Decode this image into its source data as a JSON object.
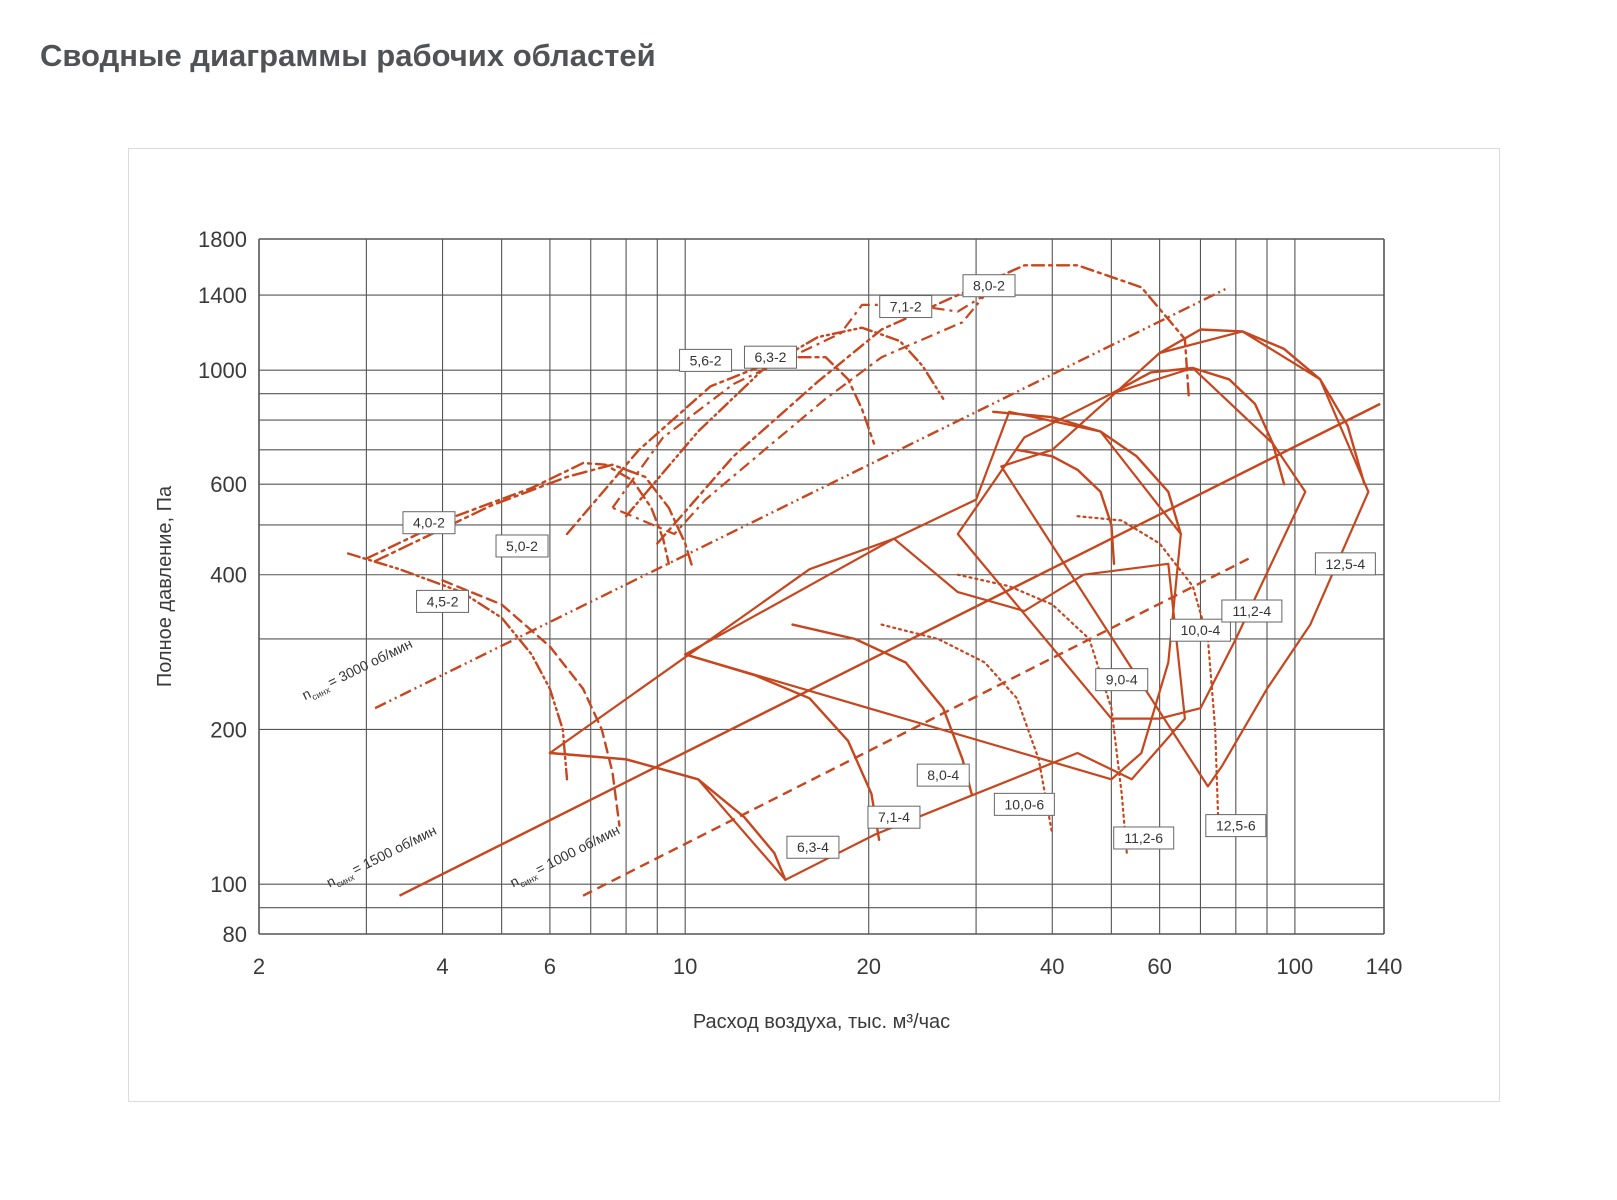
{
  "page": {
    "title": "Сводные диаграммы рабочих областей"
  },
  "chart_data": {
    "type": "line",
    "xscale": "log",
    "yscale": "log",
    "xlim": [
      2,
      140
    ],
    "ylim": [
      80,
      1800
    ],
    "grid": true,
    "xlabel": "Расход воздуха, тыс. м³/час",
    "ylabel": "Полное давление, Па",
    "x_ticks": [
      2,
      4,
      6,
      10,
      20,
      40,
      60,
      100,
      140
    ],
    "y_ticks": [
      80,
      100,
      200,
      400,
      600,
      1000,
      1400,
      1800
    ],
    "x_grid": [
      2,
      3,
      4,
      5,
      6,
      7,
      8,
      9,
      10,
      20,
      30,
      40,
      50,
      60,
      70,
      80,
      90,
      100,
      140
    ],
    "y_grid": [
      80,
      90,
      100,
      200,
      300,
      400,
      500,
      600,
      700,
      800,
      900,
      1000,
      1400,
      1800
    ],
    "curve_color": "#c8461e",
    "sync_lines": [
      {
        "label": "n",
        "sub": "синх",
        "rpm": "= 3000 об/мин",
        "style": "dashdotdot",
        "points": [
          [
            3.1,
            220
          ],
          [
            78,
            1450
          ]
        ]
      },
      {
        "label": "n",
        "sub": "синх",
        "rpm": "= 1500 об/мин",
        "style": "solid",
        "points": [
          [
            3.4,
            95
          ],
          [
            138,
            860
          ]
        ]
      },
      {
        "label": "n",
        "sub": "синх",
        "rpm": "= 1000 об/мин",
        "style": "dash",
        "points": [
          [
            6.8,
            95
          ],
          [
            84,
            430
          ]
        ]
      }
    ],
    "series": [
      {
        "name": "4,0-2",
        "style": "dashdot",
        "label_at": [
          3.8,
          505
        ],
        "points": [
          [
            3.0,
            430
          ],
          [
            4.2,
            520
          ],
          [
            5.6,
            590
          ],
          [
            6.8,
            660
          ],
          [
            7.4,
            655
          ],
          [
            8.2,
            610
          ],
          [
            8.8,
            540
          ],
          [
            9.2,
            470
          ],
          [
            9.4,
            420
          ]
        ]
      },
      {
        "name": "4,5-2",
        "style": "dashdot2",
        "label_at": [
          4.0,
          355
        ],
        "points": [
          [
            3.1,
            425
          ],
          [
            4.8,
            545
          ],
          [
            6.4,
            620
          ],
          [
            7.6,
            655
          ],
          [
            8.6,
            620
          ],
          [
            9.4,
            540
          ],
          [
            10.0,
            460
          ],
          [
            10.3,
            410
          ]
        ]
      },
      {
        "name": "5,0-2",
        "style": "dashdotdot",
        "label_at": [
          5.4,
          455
        ],
        "points": [
          [
            2.8,
            440
          ],
          [
            3.4,
            410
          ],
          [
            4.3,
            370
          ],
          [
            5.0,
            330
          ],
          [
            5.6,
            280
          ],
          [
            6.0,
            240
          ],
          [
            6.3,
            200
          ],
          [
            6.4,
            160
          ]
        ]
      },
      {
        "name": "5,6-2",
        "style": "dash",
        "label_at": [
          10.8,
          1045
        ],
        "points": [
          [
            4.0,
            390
          ],
          [
            5.0,
            350
          ],
          [
            6.0,
            290
          ],
          [
            6.8,
            240
          ],
          [
            7.3,
            200
          ],
          [
            7.6,
            165
          ],
          [
            7.8,
            130
          ]
        ]
      },
      {
        "name": "6,3-2",
        "style": "dashdot",
        "label_at": [
          13.8,
          1060
        ],
        "points": [
          [
            6.4,
            480
          ],
          [
            8.4,
            700
          ],
          [
            11.0,
            930
          ],
          [
            14.5,
            1060
          ],
          [
            17.0,
            1060
          ],
          [
            18.5,
            960
          ],
          [
            19.5,
            840
          ],
          [
            20.4,
            720
          ]
        ]
      },
      {
        "name": "7,1-2",
        "style": "dashdotdot",
        "label_at": [
          23.0,
          1330
        ],
        "points": [
          [
            8.0,
            520
          ],
          [
            10.5,
            760
          ],
          [
            13.5,
            1010
          ],
          [
            16.5,
            1160
          ],
          [
            19.5,
            1210
          ],
          [
            22.5,
            1140
          ],
          [
            24.5,
            1020
          ],
          [
            26.5,
            880
          ]
        ]
      },
      {
        "name": "8,0-2",
        "style": "dashdot",
        "label_at": [
          31.5,
          1460
        ],
        "points": [
          [
            9.0,
            460
          ],
          [
            12.0,
            680
          ],
          [
            16.5,
            950
          ],
          [
            21.0,
            1200
          ],
          [
            28.0,
            1400
          ],
          [
            36.0,
            1600
          ],
          [
            44.0,
            1600
          ],
          [
            56.0,
            1450
          ],
          [
            66.0,
            1150
          ],
          [
            67.0,
            880
          ]
        ]
      },
      {
        "name": "6,3-4",
        "style": "solid",
        "label_at": [
          16.2,
          118
        ],
        "points": [
          [
            6.0,
            180
          ],
          [
            8.0,
            175
          ],
          [
            10.5,
            160
          ],
          [
            12.5,
            135
          ],
          [
            14.0,
            115
          ],
          [
            14.6,
            102
          ]
        ]
      },
      {
        "name": "7,1-4",
        "style": "solid",
        "label_at": [
          22.0,
          135
        ],
        "points": [
          [
            10.0,
            280
          ],
          [
            13.0,
            255
          ],
          [
            16.0,
            230
          ],
          [
            18.5,
            190
          ],
          [
            20.2,
            150
          ],
          [
            20.8,
            122
          ]
        ]
      },
      {
        "name": "8,0-4",
        "style": "solid",
        "label_at": [
          26.5,
          163
        ],
        "points": [
          [
            15.0,
            320
          ],
          [
            19.0,
            300
          ],
          [
            23.0,
            270
          ],
          [
            26.5,
            220
          ],
          [
            28.5,
            175
          ],
          [
            29.5,
            150
          ]
        ]
      },
      {
        "name": "9,0-4",
        "style": "solid",
        "label_at": [
          52.0,
          250
        ],
        "points": [
          [
            35.0,
            700
          ],
          [
            40.0,
            680
          ],
          [
            44.0,
            640
          ],
          [
            48.0,
            580
          ],
          [
            50.0,
            500
          ],
          [
            50.5,
            420
          ]
        ]
      },
      {
        "name": "10,0-4",
        "style": "solid",
        "label_at": [
          70.0,
          312
        ],
        "points": [
          [
            32.0,
            830
          ],
          [
            40.0,
            810
          ],
          [
            48.0,
            760
          ],
          [
            55.0,
            680
          ],
          [
            62.0,
            580
          ],
          [
            65.0,
            480
          ]
        ]
      },
      {
        "name": "11,2-4",
        "style": "solid",
        "label_at": [
          85.0,
          340
        ],
        "points": [
          [
            50.0,
            900
          ],
          [
            58.0,
            990
          ],
          [
            68.0,
            1010
          ],
          [
            78.0,
            960
          ],
          [
            86.0,
            860
          ],
          [
            92.0,
            720
          ],
          [
            96.0,
            600
          ]
        ]
      },
      {
        "name": "12,5-4",
        "style": "solid",
        "label_at": [
          121.0,
          420
        ],
        "points": [
          [
            60.0,
            1080
          ],
          [
            70.0,
            1200
          ],
          [
            82.0,
            1190
          ],
          [
            96.0,
            1100
          ],
          [
            110.0,
            960
          ],
          [
            122.0,
            780
          ],
          [
            130.0,
            600
          ]
        ]
      },
      {
        "name": "10,0-6",
        "style": "dotted",
        "label_at": [
          36.0,
          143
        ],
        "points": [
          [
            21.0,
            320
          ],
          [
            26.0,
            300
          ],
          [
            31.0,
            270
          ],
          [
            35.0,
            230
          ],
          [
            38.0,
            175
          ],
          [
            40.0,
            125
          ]
        ]
      },
      {
        "name": "11,2-6",
        "style": "dotted",
        "label_at": [
          56.5,
          123
        ],
        "points": [
          [
            28.0,
            400
          ],
          [
            34.0,
            380
          ],
          [
            40.0,
            350
          ],
          [
            46.0,
            300
          ],
          [
            50.0,
            220
          ],
          [
            52.0,
            150
          ],
          [
            53.0,
            115
          ]
        ]
      },
      {
        "name": "12,5-6",
        "style": "dotted",
        "label_at": [
          80.0,
          130
        ],
        "points": [
          [
            44.0,
            520
          ],
          [
            52.0,
            510
          ],
          [
            60.0,
            460
          ],
          [
            68.0,
            380
          ],
          [
            72.0,
            300
          ],
          [
            74.0,
            200
          ],
          [
            75.0,
            125
          ]
        ]
      }
    ],
    "area_polygons": [
      {
        "style": "solid",
        "points": [
          [
            6.0,
            180
          ],
          [
            16.0,
            410
          ],
          [
            22.0,
            470
          ],
          [
            28.0,
            370
          ],
          [
            36.0,
            340
          ],
          [
            45.0,
            400
          ],
          [
            62.0,
            420
          ],
          [
            66.0,
            210
          ],
          [
            54.0,
            160
          ],
          [
            44.0,
            180
          ],
          [
            30.0,
            150
          ],
          [
            20.5,
            125
          ],
          [
            14.6,
            102
          ],
          [
            10.5,
            160
          ],
          [
            8.0,
            175
          ]
        ]
      },
      {
        "style": "solid",
        "points": [
          [
            10.0,
            280
          ],
          [
            22.0,
            470
          ],
          [
            30.0,
            560
          ],
          [
            34.0,
            830
          ],
          [
            48.0,
            760
          ],
          [
            65.0,
            480
          ],
          [
            62.0,
            270
          ],
          [
            56.0,
            180
          ],
          [
            50.0,
            160
          ]
        ]
      },
      {
        "style": "solid",
        "points": [
          [
            28.0,
            480
          ],
          [
            36.0,
            740
          ],
          [
            50.0,
            900
          ],
          [
            68.0,
            1010
          ],
          [
            92.0,
            720
          ],
          [
            104.0,
            580
          ],
          [
            80.0,
            300
          ],
          [
            70.0,
            220
          ],
          [
            60.0,
            210
          ],
          [
            50.0,
            210
          ]
        ]
      },
      {
        "style": "solid",
        "points": [
          [
            33.0,
            650
          ],
          [
            40.0,
            700
          ],
          [
            60.0,
            1080
          ],
          [
            82.0,
            1190
          ],
          [
            110.0,
            960
          ],
          [
            132.0,
            580
          ],
          [
            106.0,
            320
          ],
          [
            90.0,
            240
          ],
          [
            76.0,
            170
          ],
          [
            72.0,
            155
          ]
        ]
      },
      {
        "style": "dashdot",
        "points": [
          [
            7.6,
            540
          ],
          [
            9.2,
            740
          ],
          [
            12.0,
            940
          ],
          [
            18.0,
            1180
          ],
          [
            19.5,
            1340
          ],
          [
            23.5,
            1340
          ],
          [
            28.0,
            1300
          ],
          [
            31.0,
            1400
          ],
          [
            28.5,
            1240
          ],
          [
            21.0,
            1060
          ],
          [
            17.0,
            880
          ],
          [
            13.5,
            700
          ],
          [
            10.8,
            560
          ],
          [
            9.6,
            480
          ]
        ]
      }
    ]
  }
}
